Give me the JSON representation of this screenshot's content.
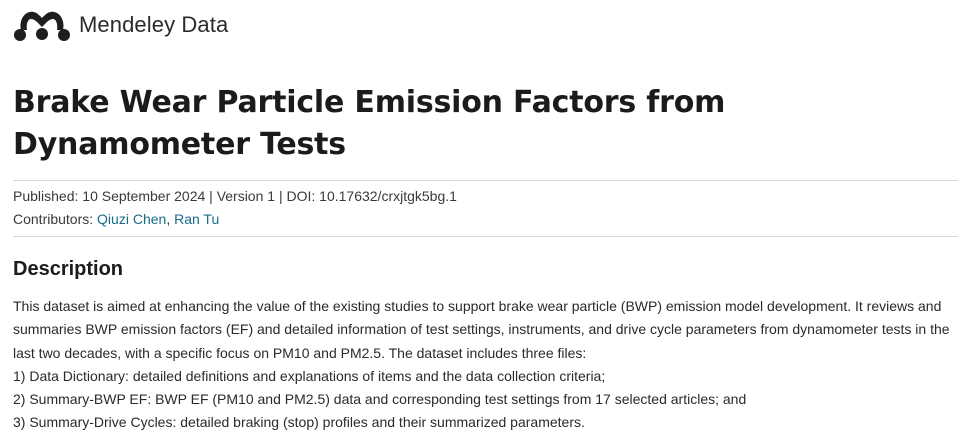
{
  "header": {
    "brand_name": "Mendeley Data",
    "logo_icon": "mendeley-logo-icon"
  },
  "dataset": {
    "title": "Brake Wear Particle Emission Factors from Dynamometer Tests",
    "published_label": "Published:",
    "published_date": "10 September 2024",
    "version": "Version 1",
    "doi_label": "DOI:",
    "doi": "10.17632/crxjtgk5bg.1",
    "contributors_label": "Contributors:",
    "contributors": [
      "Qiuzi Chen",
      "Ran Tu"
    ],
    "separator": "|"
  },
  "description": {
    "heading": "Description",
    "paragraph": "This dataset is aimed at enhancing the value of the existing studies to support brake wear particle (BWP) emission model development. It reviews and summaries BWP emission factors (EF) and detailed information of test settings, instruments, and drive cycle parameters from dynamometer tests in the last two decades, with a specific focus on PM10 and PM2.5. The dataset includes three files:",
    "items": [
      "1) Data Dictionary: detailed definitions and explanations of items and the data collection criteria;",
      "2) Summary-BWP EF: BWP EF (PM10 and PM2.5) data and corresponding test settings from 17 selected articles; and",
      "3) Summary-Drive Cycles: detailed braking (stop) profiles and their summarized parameters."
    ]
  },
  "colors": {
    "link": "#1a6a8a",
    "divider": "#d7d7d7",
    "text": "#1b1b1b"
  }
}
